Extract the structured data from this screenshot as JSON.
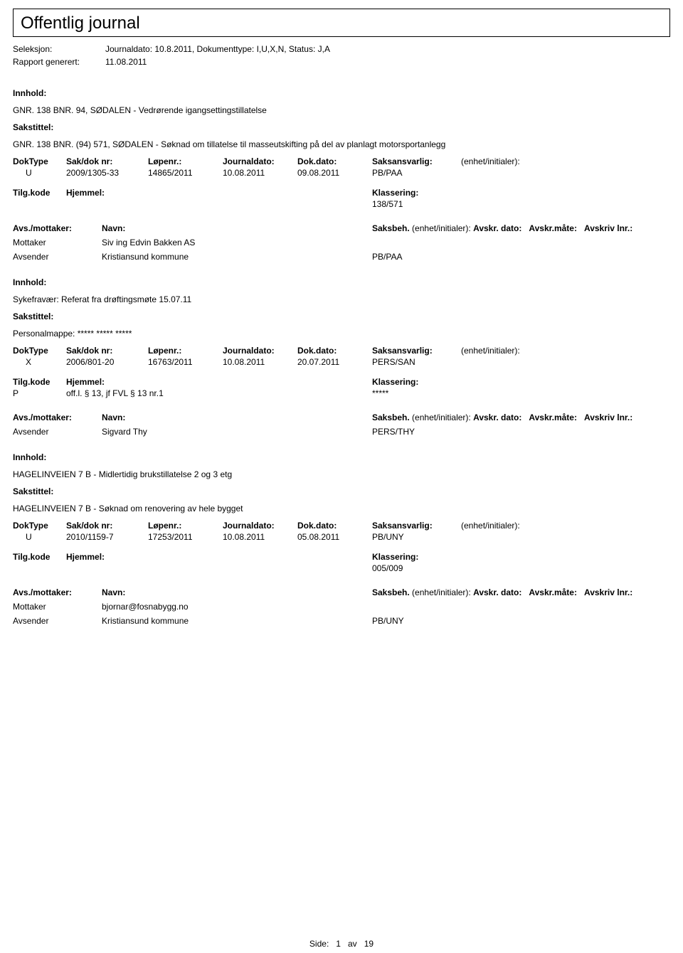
{
  "title": "Offentlig journal",
  "meta": {
    "seleksjon_label": "Seleksjon:",
    "seleksjon_value": "Journaldato: 10.8.2011, Dokumenttype: I,U,X,N, Status: J,A",
    "rapport_label": "Rapport generert:",
    "rapport_value": "11.08.2011"
  },
  "labels": {
    "innhold": "Innhold:",
    "sakstittel": "Sakstittel:",
    "doktype": "DokType",
    "sakdok": "Sak/dok nr:",
    "lopenr": "Løpenr.:",
    "journaldato": "Journaldato:",
    "dokdato": "Dok.dato:",
    "saksansvarlig": "Saksansvarlig:",
    "enhet": "(enhet/initialer):",
    "tilgkode": "Tilg.kode",
    "hjemmel": "Hjemmel:",
    "klassering": "Klassering:",
    "avs_mottaker": "Avs./mottaker:",
    "navn": "Navn:",
    "saksbeh": "Saksbeh.",
    "enhet2": "(enhet/initialer):",
    "avskr_dato": "Avskr. dato:",
    "avskr_mate": "Avskr.måte:",
    "avskriv_lnr": "Avskriv lnr.:",
    "mottaker": "Mottaker",
    "avsender": "Avsender"
  },
  "entries": [
    {
      "innhold": "GNR. 138 BNR. 94,  SØDALEN - Vedrørende igangsettingstillatelse",
      "sakstittel": "GNR. 138 BNR. (94) 571,  SØDALEN - Søknad om tillatelse til masseutskifting på del av planlagt motorsportanlegg",
      "doktype": "U",
      "sakdok": "2009/1305-33",
      "lopenr": "14865/2011",
      "journaldato": "10.08.2011",
      "dokdato": "09.08.2011",
      "saksansvarlig": "PB/PAA",
      "enhet": "",
      "tilgkode": "",
      "hjemmel": "",
      "klassering": "138/571",
      "parties": [
        {
          "role": "Mottaker",
          "name": "Siv ing Edvin Bakken AS",
          "unit": ""
        },
        {
          "role": "Avsender",
          "name": "Kristiansund kommune",
          "unit": "PB/PAA"
        }
      ]
    },
    {
      "innhold": "Sykefravær: Referat fra drøftingsmøte 15.07.11",
      "sakstittel": "Personalmappe: ***** ***** *****",
      "doktype": "X",
      "sakdok": "2006/801-20",
      "lopenr": "16763/2011",
      "journaldato": "10.08.2011",
      "dokdato": "20.07.2011",
      "saksansvarlig": "PERS/SAN",
      "enhet": "",
      "tilgkode": "P",
      "hjemmel": "off.l. § 13, jf FVL § 13 nr.1",
      "klassering": "*****",
      "parties": [
        {
          "role": "Avsender",
          "name": "Sigvard Thy",
          "unit": "PERS/THY"
        }
      ]
    },
    {
      "innhold": "HAGELINVEIEN 7 B - Midlertidig brukstillatelse 2 og 3 etg",
      "sakstittel": "HAGELINVEIEN 7 B - Søknad om renovering av hele bygget",
      "doktype": "U",
      "sakdok": "2010/1159-7",
      "lopenr": "17253/2011",
      "journaldato": "10.08.2011",
      "dokdato": "05.08.2011",
      "saksansvarlig": "PB/UNY",
      "enhet": "",
      "tilgkode": "",
      "hjemmel": "",
      "klassering": "005/009",
      "parties": [
        {
          "role": "Mottaker",
          "name": "bjornar@fosnabygg.no",
          "unit": ""
        },
        {
          "role": "Avsender",
          "name": "Kristiansund kommune",
          "unit": "PB/UNY"
        }
      ]
    }
  ],
  "footer": {
    "side": "Side:",
    "page": "1",
    "av": "av",
    "total": "19"
  }
}
